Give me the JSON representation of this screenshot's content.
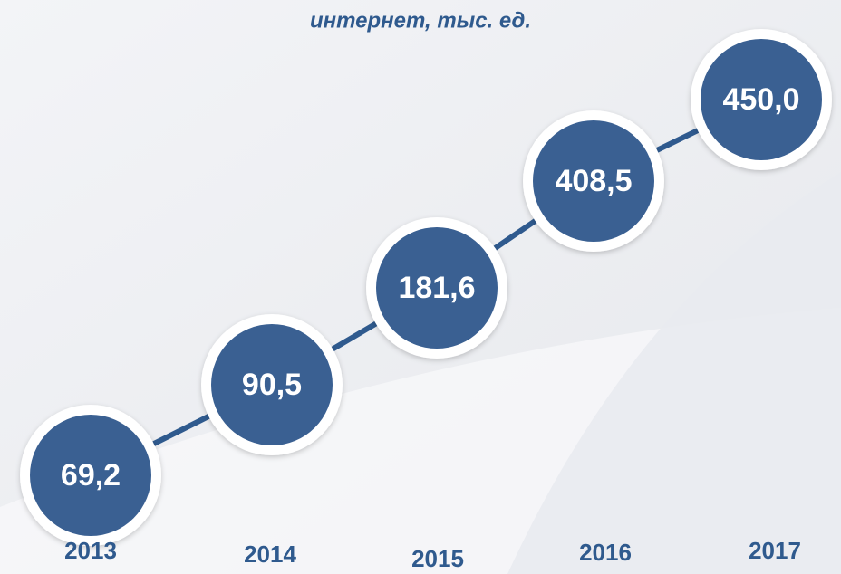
{
  "chart_data": {
    "type": "bubble-timeline",
    "title": "интернет, тыс. ед.",
    "categories": [
      "2013",
      "2014",
      "2015",
      "2016",
      "2017"
    ],
    "values": [
      69.2,
      90.5,
      181.6,
      408.5,
      450.0
    ],
    "value_labels": [
      "69,2",
      "90,5",
      "181,6",
      "408,5",
      "450,0"
    ],
    "color": "#3a6092",
    "line_color": "#2f5a8e"
  }
}
